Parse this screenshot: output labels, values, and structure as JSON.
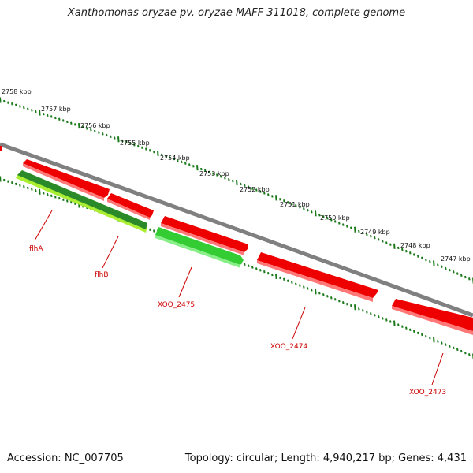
{
  "title": "Xanthomonas oryzae pv. oryzae MAFF 311018, complete genome",
  "footer": {
    "accession": "Accession: NC_007705",
    "topology": "Topology: circular; Length: 4,940,217 bp; Genes: 4,431"
  },
  "colors": {
    "backbone": "#808080",
    "tick": "#1a7a1a",
    "reverse_gene": "#ee0000",
    "forward_gene": "#33cc33",
    "forward_gene_dark": "#2a8a2a",
    "forward_gene_light": "#aaee33",
    "label": "#cc0000"
  },
  "scale_labels": [
    "2758 kbp",
    "2757 kbp",
    "2756 kbp",
    "2755 kbp",
    "2754 kbp",
    "2753 kbp",
    "2752 kbp",
    "2751 kbp",
    "2750 kbp",
    "2749 kbp",
    "2748 kbp",
    "2747 kbp"
  ],
  "gene_labels": [
    "flhA",
    "flhB",
    "XOO_2475",
    "XOO_2474",
    "XOO_2473"
  ]
}
